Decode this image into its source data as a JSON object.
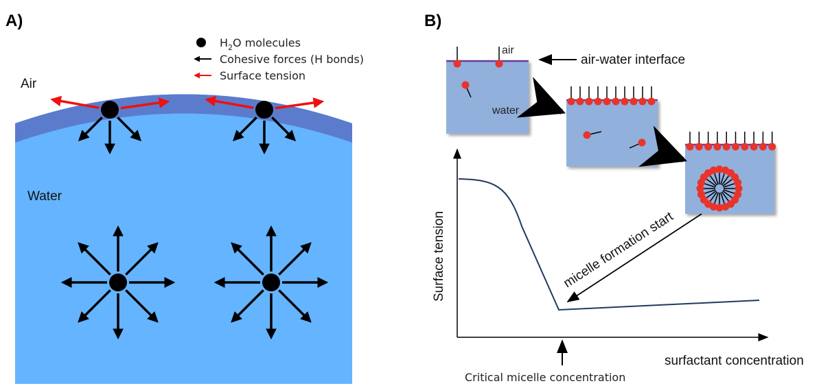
{
  "panel_a": {
    "label": "A)",
    "legend": {
      "molecules": [
        "H",
        "2",
        "O molecules"
      ],
      "cohesive": "Cohesive forces (H bonds)",
      "tension": "Surface tension"
    },
    "air": "Air",
    "water": "Water"
  },
  "panel_b": {
    "label": "B)",
    "air": "air",
    "interface": "air-water interface",
    "water": "water",
    "y_label": "Surface tension",
    "x_label": "surfactant concentration",
    "cmc": "Critical micelle concentration",
    "micelle": "micelle formation start"
  }
}
